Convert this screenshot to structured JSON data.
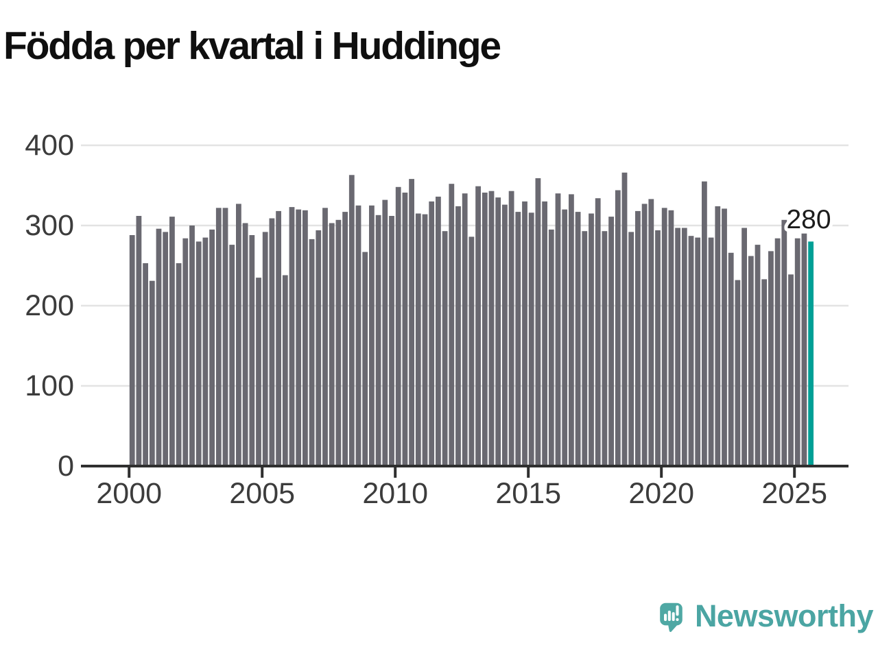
{
  "title": "Födda per kvartal i Huddinge",
  "annotation": {
    "label": "280"
  },
  "branding": {
    "name": "Newsworthy",
    "logo_icon": "speech-bubble-bar-chart-icon",
    "text_color": "#4BA5A3",
    "mark_color": "#4FA8A4"
  },
  "colors": {
    "bar": "#6A6971",
    "highlight": "#00A096",
    "grid": "#E3E3E3",
    "axis": "#2F2F2F",
    "tick_label": "#3C3C3C",
    "title": "#0F0F0F",
    "annotation": "#1C1C1C"
  },
  "chart_data": {
    "type": "bar",
    "title": "Födda per kvartal i Huddinge",
    "xlabel": "",
    "ylabel": "",
    "frequency": "quarterly",
    "start": "2000-Q1",
    "end": "2025-Q3",
    "ylim": [
      0,
      420
    ],
    "grid": "horizontal",
    "legend": "none",
    "y_ticks": [
      0,
      100,
      200,
      300,
      400
    ],
    "x_tick_years": [
      2000,
      2005,
      2010,
      2015,
      2020,
      2025
    ],
    "values": [
      288,
      312,
      253,
      231,
      296,
      292,
      311,
      253,
      284,
      300,
      280,
      285,
      295,
      322,
      322,
      276,
      327,
      303,
      288,
      235,
      292,
      309,
      318,
      238,
      323,
      320,
      319,
      283,
      294,
      322,
      303,
      307,
      317,
      363,
      325,
      267,
      325,
      313,
      332,
      312,
      348,
      341,
      358,
      315,
      314,
      330,
      336,
      293,
      352,
      324,
      340,
      286,
      349,
      341,
      343,
      335,
      326,
      343,
      317,
      330,
      316,
      359,
      330,
      295,
      340,
      320,
      339,
      317,
      293,
      315,
      334,
      293,
      311,
      344,
      366,
      292,
      318,
      327,
      333,
      294,
      322,
      319,
      297,
      297,
      287,
      285,
      355,
      285,
      324,
      321,
      266,
      232,
      297,
      262,
      276,
      233,
      268,
      284,
      307,
      239,
      284,
      290,
      280
    ],
    "highlight": {
      "index": 102,
      "value": 280,
      "label": "280",
      "color": "#00A096"
    }
  }
}
